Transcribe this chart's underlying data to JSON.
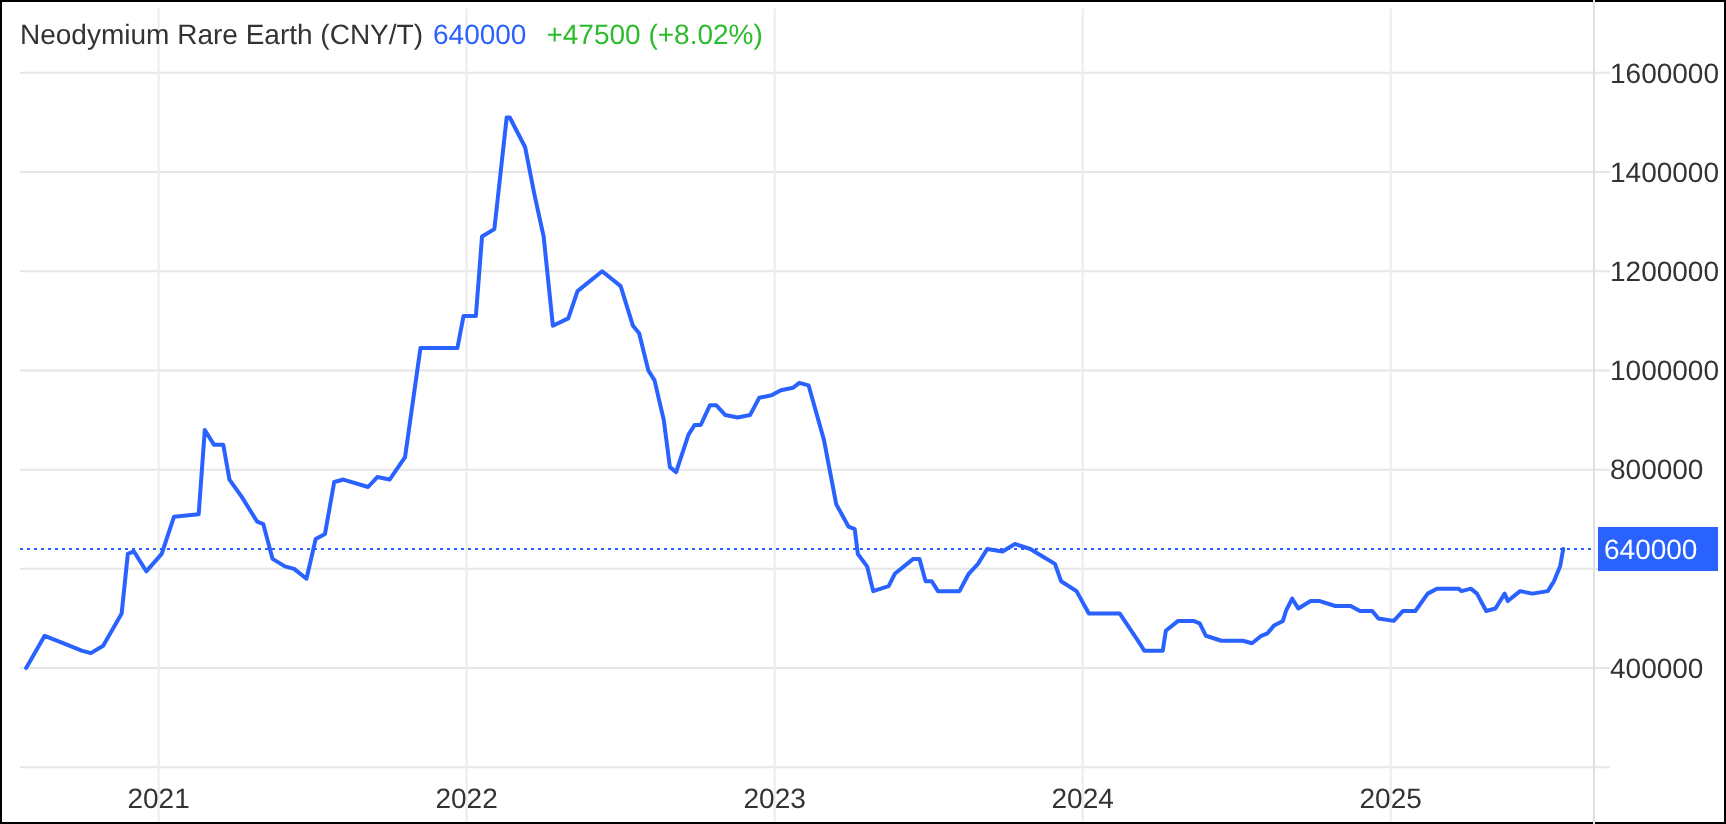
{
  "chart_data": {
    "type": "line",
    "title": "Neodymium Rare Earth (CNY/T)",
    "annotations": [
      "640000",
      "+47500 (+8.02%)"
    ],
    "x": [
      2020.57,
      2020.63,
      2020.69,
      2020.75,
      2020.78,
      2020.82,
      2020.88,
      2020.9,
      2020.92,
      2020.96,
      2021.01,
      2021.05,
      2021.13,
      2021.15,
      2021.18,
      2021.21,
      2021.23,
      2021.27,
      2021.32,
      2021.34,
      2021.37,
      2021.41,
      2021.44,
      2021.48,
      2021.51,
      2021.54,
      2021.57,
      2021.6,
      2021.68,
      2021.71,
      2021.75,
      2021.8,
      2021.85,
      2021.97,
      2021.99,
      2022.03,
      2022.05,
      2022.09,
      2022.13,
      2022.14,
      2022.19,
      2022.22,
      2022.25,
      2022.28,
      2022.33,
      2022.36,
      2022.44,
      2022.5,
      2022.54,
      2022.56,
      2022.59,
      2022.61,
      2022.64,
      2022.66,
      2022.68,
      2022.72,
      2022.74,
      2022.76,
      2022.79,
      2022.81,
      2022.84,
      2022.88,
      2022.92,
      2022.95,
      2022.99,
      2023.02,
      2023.06,
      2023.08,
      2023.11,
      2023.16,
      2023.2,
      2023.24,
      2023.26,
      2023.27,
      2023.3,
      2023.32,
      2023.37,
      2023.39,
      2023.45,
      2023.47,
      2023.49,
      2023.51,
      2023.53,
      2023.6,
      2023.63,
      2023.66,
      2023.69,
      2023.74,
      2023.78,
      2023.83,
      2023.87,
      2023.91,
      2023.93,
      2023.98,
      2024.02,
      2024.12,
      2024.19,
      2024.2,
      2024.26,
      2024.27,
      2024.31,
      2024.36,
      2024.38,
      2024.4,
      2024.45,
      2024.52,
      2024.55,
      2024.58,
      2024.6,
      2024.62,
      2024.65,
      2024.66,
      2024.68,
      2024.7,
      2024.74,
      2024.77,
      2024.82,
      2024.87,
      2024.9,
      2024.94,
      2024.96,
      2025.01,
      2025.04,
      2025.08,
      2025.12,
      2025.15,
      2025.22,
      2025.23,
      2025.26,
      2025.28,
      2025.31,
      2025.34,
      2025.37,
      2025.38,
      2025.42,
      2025.46,
      2025.51,
      2025.53,
      2025.55,
      2025.56
    ],
    "series": [
      {
        "color": "#2962ff",
        "values": [
          400000,
          465000,
          450000,
          435000,
          430000,
          445000,
          510000,
          630000,
          635000,
          595000,
          630000,
          705000,
          710000,
          880000,
          850000,
          850000,
          780000,
          745000,
          695000,
          690000,
          620000,
          605000,
          600000,
          580000,
          660000,
          670000,
          775000,
          780000,
          765000,
          785000,
          780000,
          825000,
          1045000,
          1045000,
          1110000,
          1110000,
          1270000,
          1285000,
          1510000,
          1510000,
          1450000,
          1355000,
          1270000,
          1090000,
          1105000,
          1160000,
          1200000,
          1170000,
          1090000,
          1075000,
          1000000,
          980000,
          900000,
          805000,
          795000,
          870000,
          890000,
          890000,
          930000,
          930000,
          910000,
          905000,
          910000,
          945000,
          950000,
          960000,
          965000,
          975000,
          970000,
          860000,
          730000,
          685000,
          680000,
          630000,
          605000,
          555000,
          565000,
          590000,
          620000,
          620000,
          575000,
          575000,
          555000,
          555000,
          590000,
          610000,
          640000,
          635000,
          650000,
          640000,
          625000,
          610000,
          575000,
          555000,
          510000,
          510000,
          445000,
          435000,
          435000,
          475000,
          495000,
          495000,
          490000,
          465000,
          455000,
          455000,
          450000,
          465000,
          470000,
          485000,
          495000,
          515000,
          540000,
          520000,
          535000,
          535000,
          525000,
          525000,
          515000,
          515000,
          500000,
          495000,
          515000,
          515000,
          550000,
          560000,
          560000,
          555000,
          560000,
          550000,
          515000,
          520000,
          550000,
          535000,
          555000,
          550000,
          555000,
          575000,
          605000,
          640000
        ]
      }
    ],
    "xlim": [
      2020.55,
      2025.66
    ],
    "xticks": [
      2021,
      2022,
      2023,
      2024,
      2025
    ],
    "ylim": [
      200000,
      1730000
    ],
    "yticks": [
      {
        "value": 200000,
        "label": null
      },
      400000,
      {
        "value": 600000,
        "label": null
      },
      800000,
      1000000,
      1200000,
      1400000,
      1600000
    ],
    "ref_lines": [
      {
        "axis": "y",
        "value": 640000,
        "label": "640000",
        "color": "#2962ff",
        "line_style": "dotted"
      }
    ],
    "grid": true,
    "marker": "none",
    "line_style": "solid"
  }
}
